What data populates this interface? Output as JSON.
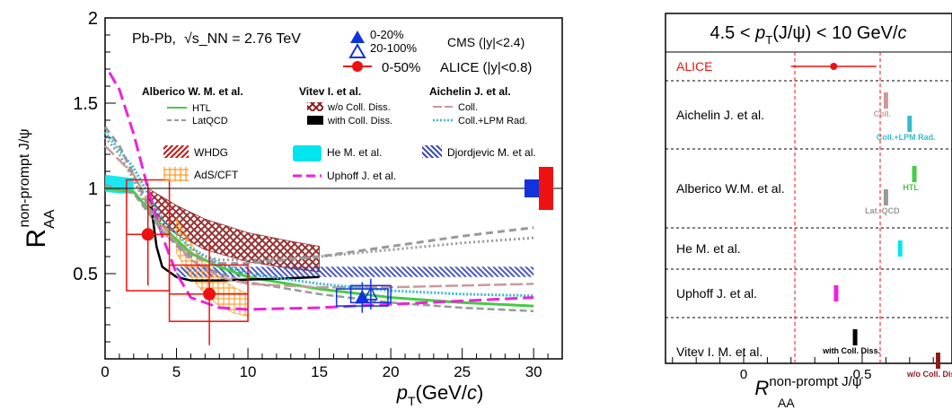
{
  "chart_data": [
    {
      "type": "line",
      "xlabel": "p_T(GeV/c)",
      "ylabel": "R_AA^non-prompt J/ψ",
      "xlim": [
        0,
        32
      ],
      "ylim": [
        0,
        2
      ],
      "xticks": [
        "0",
        "5",
        "10",
        "15",
        "20",
        "25",
        "30"
      ],
      "yticks": [
        "0.5",
        "1",
        "1.5",
        "2"
      ],
      "header": {
        "system": "Pb-Pb,",
        "energy": "√s_NN = 2.76 TeV",
        "cms_cent1": "0-20%",
        "cms_cent2": "20-100%",
        "cms_label": "CMS (|y|<2.4)",
        "alice_cent": "0-50%",
        "alice_label": "ALICE (|y|<0.8)"
      },
      "legend": {
        "group1_title": "Alberico W. M. et al.",
        "group1": [
          "HTL",
          "LatQCD"
        ],
        "group2_title": "Vitev I. et al.",
        "group2": [
          "w/o Coll. Diss.",
          "with Coll. Diss."
        ],
        "group3_title": "Aichelin J. et al.",
        "group3": [
          "Coll.",
          "Coll.+LPM Rad."
        ],
        "bands": [
          "WHDG",
          "He M. et al.",
          "Djordjevic M. et al.",
          "AdS/CFT",
          "Uphoff J. et al."
        ]
      },
      "alice_points": [
        {
          "x": 3.0,
          "y": 0.73,
          "xlo": 1.5,
          "xhi": 4.5,
          "ylo": 0.4,
          "yhi": 1.05
        },
        {
          "x": 7.3,
          "y": 0.38,
          "xlo": 4.5,
          "xhi": 10.0,
          "ylo": 0.22,
          "yhi": 0.55
        }
      ],
      "cms_points": [
        {
          "label": "0-20%",
          "x": 18.0,
          "y": 0.36,
          "xlo": 16.2,
          "xhi": 19.8,
          "ylo": 0.31,
          "yhi": 0.41
        },
        {
          "label": "20-100%",
          "x": 18.6,
          "y": 0.38,
          "xlo": 17.2,
          "xhi": 20.0,
          "ylo": 0.33,
          "yhi": 0.43
        }
      ],
      "series": [
        {
          "name": "HTL",
          "x": [
            0,
            2,
            4,
            6,
            8,
            10,
            15,
            20,
            25,
            30
          ],
          "y": [
            1.0,
            0.98,
            0.78,
            0.62,
            0.54,
            0.48,
            0.41,
            0.36,
            0.33,
            0.31
          ]
        },
        {
          "name": "LatQCD",
          "x": [
            0,
            2,
            4,
            6,
            8,
            10,
            15,
            20,
            25,
            30
          ],
          "y": [
            1.02,
            0.97,
            0.75,
            0.58,
            0.5,
            0.45,
            0.38,
            0.33,
            0.3,
            0.28
          ]
        },
        {
          "name": "with Coll. Diss.",
          "x": [
            3.1,
            3.3,
            3.6,
            4,
            5,
            6,
            8,
            10,
            12,
            15
          ],
          "y": [
            0.98,
            0.85,
            0.66,
            0.54,
            0.48,
            0.46,
            0.46,
            0.465,
            0.47,
            0.48
          ]
        },
        {
          "name": "Coll.",
          "x": [
            0,
            2,
            4,
            6,
            8,
            10,
            15,
            20,
            25,
            30
          ],
          "y": [
            1.25,
            1.08,
            0.78,
            0.58,
            0.48,
            0.44,
            0.42,
            0.42,
            0.43,
            0.44
          ]
        },
        {
          "name": "Coll.+LPM Rad.",
          "x": [
            0,
            2,
            4,
            6,
            8,
            10,
            15,
            20,
            25,
            30
          ],
          "y": [
            1.33,
            1.12,
            0.82,
            0.65,
            0.56,
            0.5,
            0.44,
            0.4,
            0.38,
            0.37
          ]
        },
        {
          "name": "Uphoff J. et al.",
          "x": [
            0.3,
            1,
            2,
            3,
            4,
            5,
            6,
            8,
            10,
            15,
            20,
            25,
            30
          ],
          "y": [
            1.68,
            1.58,
            1.32,
            1.0,
            0.72,
            0.5,
            0.36,
            0.3,
            0.29,
            0.3,
            0.32,
            0.34,
            0.36
          ]
        },
        {
          "name": "gray-dashed-upper",
          "x": [
            0,
            1,
            2,
            3,
            4,
            6,
            8,
            10,
            15,
            20,
            25,
            30
          ],
          "y": [
            1.36,
            1.25,
            1.08,
            0.9,
            0.75,
            0.6,
            0.56,
            0.56,
            0.6,
            0.66,
            0.72,
            0.77
          ]
        },
        {
          "name": "gray-dotted-upper",
          "x": [
            0,
            1,
            2,
            3,
            4,
            6,
            8,
            10,
            15,
            20,
            25,
            30
          ],
          "y": [
            1.3,
            1.2,
            1.05,
            0.88,
            0.74,
            0.62,
            0.58,
            0.58,
            0.6,
            0.64,
            0.68,
            0.71
          ]
        }
      ],
      "bands": [
        {
          "name": "WHDG",
          "x": [
            3,
            5,
            7,
            10,
            13,
            15
          ],
          "lo": [
            0.85,
            0.73,
            0.64,
            0.57,
            0.53,
            0.51
          ],
          "hi": [
            1.0,
            0.9,
            0.82,
            0.74,
            0.69,
            0.66
          ]
        },
        {
          "name": "He M. et al.",
          "x": [
            0,
            1,
            2
          ],
          "lo": [
            0.98,
            0.97,
            0.97
          ],
          "hi": [
            1.08,
            1.07,
            1.06
          ]
        },
        {
          "name": "Djordjevic M. et al.",
          "x": [
            5,
            30
          ],
          "lo": [
            0.48,
            0.48
          ],
          "hi": [
            0.54,
            0.54
          ]
        },
        {
          "name": "AdS/CFT",
          "x": [
            5,
            6,
            7,
            8,
            9,
            10
          ],
          "lo": [
            0.62,
            0.48,
            0.38,
            0.31,
            0.27,
            0.25
          ],
          "hi": [
            0.82,
            0.68,
            0.56,
            0.48,
            0.42,
            0.38
          ]
        }
      ],
      "colors": {
        "alice": "#ee1111",
        "cms": "#1133dd",
        "htl": "#44cc44",
        "vitev_wo": "#8b1a1a",
        "aichelin_coll": "#cc9999",
        "lpm": "#33bbcc",
        "he": "#00e5ee",
        "djordjevic": "#3344bb",
        "adscft": "#ff9922",
        "uphoff": "#ee22dd",
        "gray": "#999999"
      }
    },
    {
      "type": "scatter",
      "title": "4.5 < p_T(J/ψ) < 10 GeV/c",
      "xlabel": "R_AA^non-prompt J/ψ",
      "xlim": [
        -0.6,
        1.0
      ],
      "xticks": [
        "0",
        "0.5"
      ],
      "rows": [
        {
          "label": "ALICE",
          "markers": [
            {
              "value": 0.38,
              "lo": 0.2,
              "hi": 0.56
            }
          ]
        },
        {
          "label": "Aichelin J. et al.",
          "markers": [
            {
              "text": "Coll.",
              "value": 0.6
            },
            {
              "text": "Coll.+LPM Rad.",
              "value": 0.7
            }
          ]
        },
        {
          "label": "Alberico W.M. et al.",
          "markers": [
            {
              "text": "HTL",
              "value": 0.72
            },
            {
              "text": "Lat. QCD",
              "value": 0.6
            }
          ]
        },
        {
          "label": "He M. et al.",
          "markers": [
            {
              "value": 0.66
            }
          ]
        },
        {
          "label": "Uphoff J. et al.",
          "markers": [
            {
              "value": 0.39
            }
          ]
        },
        {
          "label": "Vitev I. M. et al.",
          "markers": [
            {
              "text": "with Coll. Diss.",
              "value": 0.47
            },
            {
              "text": "w/o Coll. Diss.",
              "value": 0.82
            }
          ]
        }
      ]
    }
  ]
}
